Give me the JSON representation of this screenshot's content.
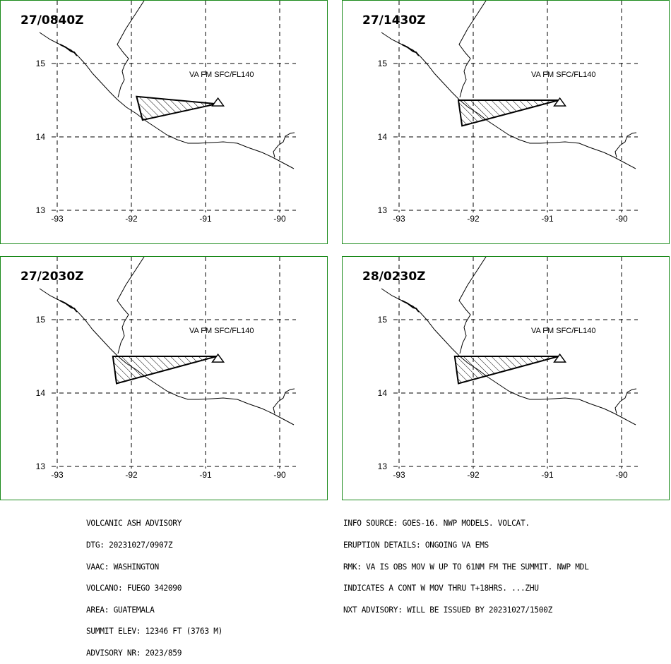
{
  "panels": [
    {
      "time": "27/0840Z",
      "label": "VA FM SFC/FL140",
      "polygon": [
        [
          -91.93,
          14.55
        ],
        [
          -90.85,
          14.45
        ],
        [
          -91.85,
          14.23
        ]
      ]
    },
    {
      "time": "27/1430Z",
      "label": "VA FM SFC/FL140",
      "polygon": [
        [
          -92.2,
          14.5
        ],
        [
          -90.85,
          14.5
        ],
        [
          -92.15,
          14.15
        ]
      ]
    },
    {
      "time": "27/2030Z",
      "label": "VA FM SFC/FL140",
      "polygon": [
        [
          -92.25,
          14.5
        ],
        [
          -90.85,
          14.5
        ],
        [
          -92.2,
          14.13
        ]
      ]
    },
    {
      "time": "28/0230Z",
      "label": "VA FM SFC/FL140",
      "polygon": [
        [
          -92.25,
          14.5
        ],
        [
          -90.85,
          14.5
        ],
        [
          -92.2,
          14.13
        ]
      ]
    }
  ],
  "axes": {
    "lon_ticks": [
      "-93",
      "-92",
      "-91",
      "-90"
    ],
    "lat_ticks": [
      "15",
      "14",
      "13"
    ]
  },
  "volcano": {
    "lon": -90.88,
    "lat": 14.47,
    "marker": "triangle-icon"
  },
  "advisory_left": [
    "VOLCANIC ASH ADVISORY",
    "DTG: 20231027/0907Z",
    "VAAC: WASHINGTON",
    "VOLCANO: FUEGO 342090",
    "AREA: GUATEMALA",
    "SUMMIT ELEV: 12346 FT (3763 M)",
    "ADVISORY NR: 2023/859"
  ],
  "advisory_right": [
    "INFO SOURCE: GOES-16. NWP MODELS. VOLCAT.",
    "ERUPTION DETAILS: ONGOING VA EMS",
    "RMK: VA IS OBS MOV W UP TO 61NM FM THE SUMMIT. NWP MDL",
    "INDICATES A CONT W MOV THRU T+18HRS. ...ZHU",
    "NXT ADVISORY: WILL BE ISSUED BY 20231027/1500Z"
  ],
  "colors": {
    "frame": "#1a8a1a",
    "lines": "#000000"
  }
}
